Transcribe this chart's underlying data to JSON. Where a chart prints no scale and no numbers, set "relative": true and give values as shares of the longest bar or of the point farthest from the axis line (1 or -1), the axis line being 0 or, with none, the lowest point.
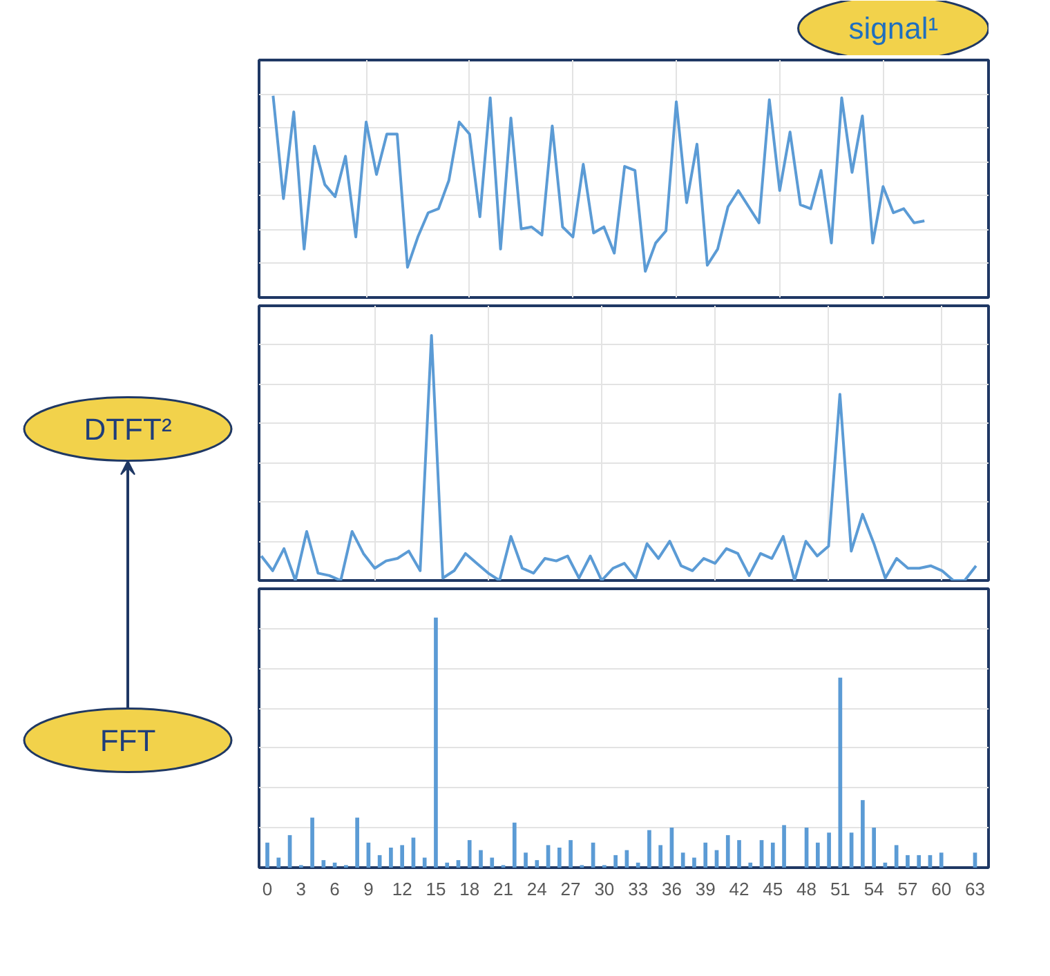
{
  "chart_data": [
    {
      "type": "line",
      "title": "signal¹",
      "relative": true,
      "grid": true,
      "color": "#5b9bd5",
      "tick_labels": false,
      "categories": [
        null,
        null,
        null,
        null,
        null,
        null,
        null,
        null,
        null,
        null,
        null,
        null,
        null,
        null,
        null,
        null,
        null,
        null,
        null,
        null,
        null,
        null,
        null,
        null,
        null,
        null,
        null,
        null,
        null,
        null,
        null,
        null,
        null,
        null,
        null,
        null,
        null,
        null,
        null,
        null,
        null,
        null,
        null,
        null,
        null,
        null,
        null,
        null,
        null,
        null,
        null,
        null,
        null,
        null,
        null,
        null,
        null,
        null,
        null,
        null,
        null,
        null,
        null,
        null
      ],
      "values": [
        1.0,
        0.49,
        0.92,
        0.24,
        0.75,
        0.56,
        0.5,
        0.7,
        0.3,
        0.87,
        0.61,
        0.81,
        0.81,
        0.15,
        0.3,
        0.42,
        0.44,
        0.58,
        0.87,
        0.81,
        0.4,
        0.99,
        0.24,
        0.89,
        0.34,
        0.35,
        0.31,
        0.85,
        0.35,
        0.3,
        0.66,
        0.32,
        0.35,
        0.22,
        0.65,
        0.63,
        0.13,
        0.27,
        0.33,
        0.97,
        0.47,
        0.76,
        0.16,
        0.24,
        0.45,
        0.53,
        0.45,
        0.37,
        0.98,
        0.53,
        0.82,
        0.46,
        0.44,
        0.63,
        0.27,
        0.99,
        0.62,
        0.9,
        0.27,
        0.55,
        0.42,
        0.44,
        0.37,
        0.38
      ]
    },
    {
      "type": "line",
      "title": "DTFT²",
      "relative": true,
      "grid": true,
      "color": "#5b9bd5",
      "tick_labels": false,
      "categories": [
        null,
        null,
        null,
        null,
        null,
        null,
        null,
        null,
        null,
        null,
        null,
        null,
        null,
        null,
        null,
        null,
        null,
        null,
        null,
        null,
        null,
        null,
        null,
        null,
        null,
        null,
        null,
        null,
        null,
        null,
        null,
        null,
        null,
        null,
        null,
        null,
        null,
        null,
        null,
        null,
        null,
        null,
        null,
        null,
        null,
        null,
        null,
        null,
        null,
        null,
        null,
        null,
        null,
        null,
        null,
        null,
        null,
        null,
        null,
        null,
        null,
        null,
        null,
        null
      ],
      "values": [
        0.1,
        0.04,
        0.13,
        0,
        0.2,
        0.03,
        0.02,
        0,
        0.2,
        0.11,
        0.05,
        0.08,
        0.09,
        0.12,
        0.04,
        1.0,
        0.01,
        0.04,
        0.11,
        0.07,
        0.03,
        0,
        0.18,
        0.05,
        0.03,
        0.09,
        0.08,
        0.1,
        0.01,
        0.1,
        0,
        0.05,
        0.07,
        0.01,
        0.15,
        0.09,
        0.16,
        0.06,
        0.04,
        0.09,
        0.07,
        0.13,
        0.11,
        0.02,
        0.11,
        0.09,
        0.18,
        0,
        0.16,
        0.1,
        0.14,
        0.76,
        0.12,
        0.27,
        0.15,
        0.01,
        0.09,
        0.05,
        0.05,
        0.06,
        0.04,
        0,
        0,
        0.06
      ]
    },
    {
      "type": "bar",
      "title": "FFT",
      "relative": true,
      "grid": "y",
      "color": "#5b9bd5",
      "tick_labels": "x",
      "xlim": [
        -0.74,
        64.2
      ],
      "xticks": [
        0,
        3,
        6,
        9,
        12,
        15,
        18,
        21,
        24,
        27,
        30,
        33,
        36,
        39,
        42,
        45,
        48,
        51,
        54,
        57,
        60,
        63
      ],
      "x": [
        0,
        1,
        2,
        3,
        4,
        5,
        6,
        7,
        8,
        9,
        10,
        11,
        12,
        13,
        14,
        15,
        16,
        17,
        18,
        19,
        20,
        21,
        22,
        23,
        24,
        25,
        26,
        27,
        28,
        29,
        30,
        31,
        32,
        33,
        34,
        35,
        36,
        37,
        38,
        39,
        40,
        41,
        42,
        43,
        44,
        45,
        46,
        47,
        48,
        49,
        50,
        51,
        52,
        53,
        54,
        55,
        56,
        57,
        58,
        59,
        60,
        61,
        62,
        63
      ],
      "values": [
        0.1,
        0.04,
        0.13,
        0.01,
        0.2,
        0.03,
        0.02,
        0.01,
        0.2,
        0.1,
        0.05,
        0.08,
        0.09,
        0.12,
        0.04,
        1.0,
        0.02,
        0.03,
        0.11,
        0.07,
        0.04,
        0.01,
        0.18,
        0.06,
        0.03,
        0.09,
        0.08,
        0.11,
        0.01,
        0.1,
        0.01,
        0.05,
        0.07,
        0.02,
        0.15,
        0.09,
        0.16,
        0.06,
        0.04,
        0.1,
        0.07,
        0.13,
        0.11,
        0.02,
        0.11,
        0.1,
        0.17,
        0.0,
        0.16,
        0.1,
        0.14,
        0.76,
        0.14,
        0.27,
        0.16,
        0.02,
        0.09,
        0.05,
        0.05,
        0.05,
        0.06,
        0.0,
        0.0,
        0.06
      ]
    }
  ]
}
